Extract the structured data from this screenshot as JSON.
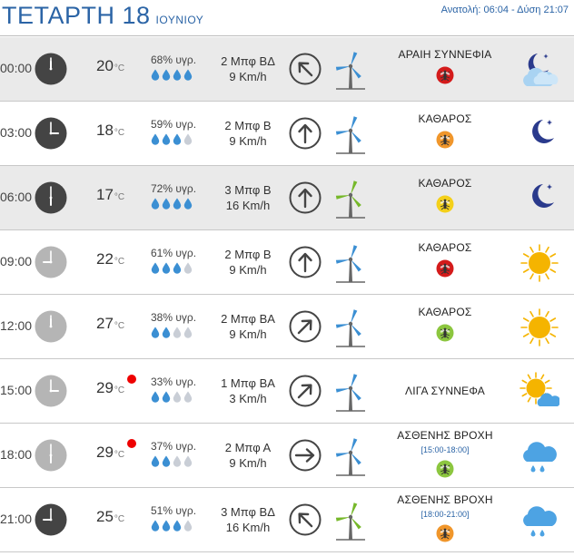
{
  "header": {
    "day": "ΤΕΤΑΡΤΗ 18",
    "month": "ΙΟΥΝΙΟΥ",
    "sun_times": "Ανατολή: 06:04  - Δύση 21:07"
  },
  "colors": {
    "accent": "#2b64a6",
    "drop_filled": "#3b8fd3",
    "drop_empty": "#c9ced6",
    "alert": "#e00000",
    "turbine_blue": "#3b8fd3",
    "turbine_green": "#76b82a",
    "mosquito_red": "#d41b1b",
    "mosquito_orange": "#f0962b",
    "mosquito_yellow": "#f4d01a",
    "mosquito_green": "#8cc63f"
  },
  "rows": [
    {
      "time": "00:00",
      "clock": "dark",
      "hour": 0,
      "temp": "20",
      "unit": "°C",
      "alert": false,
      "humidity": "68% υγρ.",
      "drops": 4,
      "wind_force": "2 Μπφ ΒΔ",
      "wind_speed": "9 Km/h",
      "wind_dir": "NW",
      "turbine": "blue",
      "condition": "ΑΡΑΙΗ ΣΥΝΝΕΦΙΑ",
      "range": "",
      "mosquito": "red",
      "icon": "moon-cloud-icon",
      "shaded": true
    },
    {
      "time": "03:00",
      "clock": "dark",
      "hour": 3,
      "temp": "18",
      "unit": "°C",
      "alert": false,
      "humidity": "59% υγρ.",
      "drops": 3,
      "wind_force": "2 Μπφ Β",
      "wind_speed": "9 Km/h",
      "wind_dir": "N",
      "turbine": "blue",
      "condition": "ΚΑΘΑΡΟΣ",
      "range": "",
      "mosquito": "orange",
      "icon": "moon-icon",
      "shaded": false
    },
    {
      "time": "06:00",
      "clock": "dark",
      "hour": 6,
      "temp": "17",
      "unit": "°C",
      "alert": false,
      "humidity": "72% υγρ.",
      "drops": 4,
      "wind_force": "3 Μπφ Β",
      "wind_speed": "16 Km/h",
      "wind_dir": "N",
      "turbine": "green",
      "condition": "ΚΑΘΑΡΟΣ",
      "range": "",
      "mosquito": "yellow",
      "icon": "moon-icon",
      "shaded": true
    },
    {
      "time": "09:00",
      "clock": "light",
      "hour": 9,
      "temp": "22",
      "unit": "°C",
      "alert": false,
      "humidity": "61% υγρ.",
      "drops": 3,
      "wind_force": "2 Μπφ Β",
      "wind_speed": "9 Km/h",
      "wind_dir": "N",
      "turbine": "blue",
      "condition": "ΚΑΘΑΡΟΣ",
      "range": "",
      "mosquito": "red",
      "icon": "sun-icon",
      "shaded": false
    },
    {
      "time": "12:00",
      "clock": "light",
      "hour": 12,
      "temp": "27",
      "unit": "°C",
      "alert": false,
      "humidity": "38% υγρ.",
      "drops": 2,
      "wind_force": "2 Μπφ ΒΑ",
      "wind_speed": "9 Km/h",
      "wind_dir": "NE",
      "turbine": "blue",
      "condition": "ΚΑΘΑΡΟΣ",
      "range": "",
      "mosquito": "green",
      "icon": "sun-icon",
      "shaded": false
    },
    {
      "time": "15:00",
      "clock": "light",
      "hour": 3,
      "temp": "29",
      "unit": "°C",
      "alert": true,
      "humidity": "33% υγρ.",
      "drops": 2,
      "wind_force": "1 Μπφ ΒΑ",
      "wind_speed": "3 Km/h",
      "wind_dir": "NE",
      "turbine": "blue",
      "condition": "ΛΙΓΑ ΣΥΝΝΕΦΑ",
      "range": "",
      "mosquito": "",
      "icon": "sun-cloud-icon",
      "shaded": false
    },
    {
      "time": "18:00",
      "clock": "light",
      "hour": 6,
      "temp": "29",
      "unit": "°C",
      "alert": true,
      "humidity": "37% υγρ.",
      "drops": 2,
      "wind_force": "2 Μπφ Α",
      "wind_speed": "9 Km/h",
      "wind_dir": "E",
      "turbine": "blue",
      "condition": "ΑΣΘΕΝΗΣ ΒΡΟΧΗ",
      "range": "[15:00-18:00]",
      "mosquito": "green",
      "icon": "rain-cloud-icon",
      "shaded": false
    },
    {
      "time": "21:00",
      "clock": "dark",
      "hour": 9,
      "temp": "25",
      "unit": "°C",
      "alert": false,
      "humidity": "51% υγρ.",
      "drops": 3,
      "wind_force": "3 Μπφ ΒΔ",
      "wind_speed": "16 Km/h",
      "wind_dir": "NW",
      "turbine": "green",
      "condition": "ΑΣΘΕΝΗΣ ΒΡΟΧΗ",
      "range": "[18:00-21:00]",
      "mosquito": "orange",
      "icon": "rain-cloud-icon",
      "shaded": false
    }
  ]
}
